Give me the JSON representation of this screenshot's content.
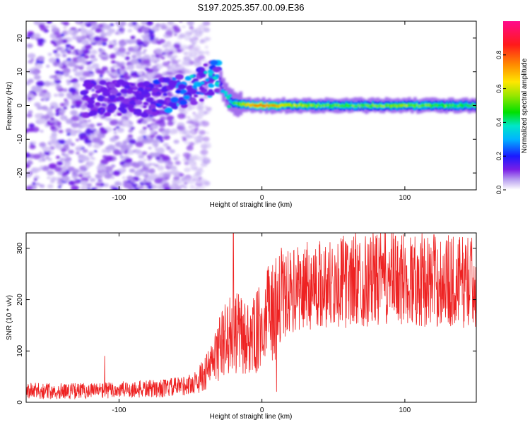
{
  "title": "S197.2025.357.00.09.E36",
  "chart_data": [
    {
      "type": "heatmap",
      "title": "S197.2025.357.00.09.E36",
      "xlabel": "Height of straight line (km)",
      "ylabel": "Frequency (Hz)",
      "xlim": [
        -165,
        150
      ],
      "ylim": [
        -25,
        25
      ],
      "xticks": [
        -100,
        0,
        100
      ],
      "yticks": [
        -20,
        -10,
        0,
        10,
        20
      ],
      "colorbar": {
        "label": "Normalized spectral amplitude",
        "range": [
          0,
          1
        ],
        "ticks": [
          "0.0",
          "0.2",
          "0.4",
          "0.6",
          "0.8"
        ]
      },
      "ridge": {
        "description": "Narrow high-amplitude Doppler ridge near 0 Hz",
        "x": [
          -50,
          -40,
          -30,
          -25,
          -20,
          -10,
          0,
          20,
          50,
          100,
          150
        ],
        "freq_hz": [
          7,
          8,
          7,
          2,
          0.5,
          0.3,
          0,
          0,
          0,
          0,
          0
        ],
        "amplitude": [
          0.15,
          0.2,
          0.2,
          0.25,
          0.45,
          0.7,
          0.75,
          0.6,
          0.5,
          0.55,
          0.45
        ]
      },
      "noise_region_x": [
        -165,
        -45
      ]
    },
    {
      "type": "line",
      "xlabel": "Height of straight line (km)",
      "ylabel": "SNR (10 * v/v)",
      "xlim": [
        -165,
        150
      ],
      "ylim": [
        0,
        330
      ],
      "xticks": [
        -100,
        0,
        100
      ],
      "yticks": [
        0,
        100,
        200,
        300
      ],
      "series": [
        {
          "name": "SNR",
          "color": "#ee2222",
          "x": [
            -165,
            -150,
            -130,
            -110,
            -90,
            -70,
            -60,
            -50,
            -45,
            -40,
            -35,
            -30,
            -25,
            -20,
            -15,
            -10,
            -5,
            0,
            5,
            10,
            15,
            20,
            30,
            40,
            60,
            80,
            100,
            120,
            140,
            150
          ],
          "y": [
            22,
            22,
            22,
            23,
            25,
            27,
            30,
            35,
            42,
            55,
            75,
            105,
            125,
            140,
            130,
            120,
            130,
            150,
            170,
            180,
            200,
            215,
            225,
            230,
            235,
            240,
            240,
            238,
            235,
            235
          ]
        }
      ],
      "peaks": [
        {
          "x": -20,
          "y": 330
        },
        {
          "x": -110,
          "y": 90
        }
      ]
    }
  ]
}
